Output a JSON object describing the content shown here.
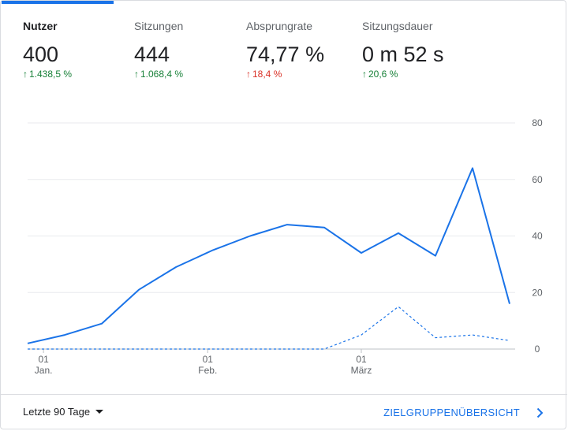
{
  "metrics": [
    {
      "label": "Nutzer",
      "value": "400",
      "delta": "1.438,5 %",
      "trend": "up"
    },
    {
      "label": "Sitzungen",
      "value": "444",
      "delta": "1.068,4 %",
      "trend": "up"
    },
    {
      "label": "Absprungrate",
      "value": "74,77 %",
      "delta": "18,4 %",
      "trend": "up"
    },
    {
      "label": "Sitzungsdauer",
      "value": "0 m 52 s",
      "delta": "20,6 %",
      "trend": "up"
    }
  ],
  "colors": {
    "accent": "#1a73e8",
    "positive": "#188038",
    "negative": "#d93025"
  },
  "chart_data": {
    "type": "line",
    "x": [
      "2019-12-29",
      "2020-01-05",
      "2020-01-12",
      "2020-01-19",
      "2020-01-26",
      "2020-02-02",
      "2020-02-09",
      "2020-02-16",
      "2020-02-23",
      "2020-03-01",
      "2020-03-08",
      "2020-03-15",
      "2020-03-22",
      "2020-03-29"
    ],
    "x_ticks": [
      {
        "date": "2020-01-01",
        "day": "01",
        "month": "Jan."
      },
      {
        "date": "2020-02-01",
        "day": "01",
        "month": "Feb."
      },
      {
        "date": "2020-03-01",
        "day": "01",
        "month": "März"
      }
    ],
    "series": [
      {
        "style": "solid",
        "values": [
          2,
          5,
          9,
          21,
          29,
          35,
          40,
          44,
          43,
          34,
          41,
          33,
          64,
          16
        ]
      },
      {
        "style": "dashed",
        "values": [
          0,
          0,
          0,
          0,
          0,
          0,
          0,
          0,
          0,
          5,
          15,
          4,
          5,
          3
        ]
      }
    ],
    "ylim": [
      0,
      80
    ],
    "y_ticks": [
      0,
      20,
      40,
      60,
      80
    ],
    "y_axis_side": "right",
    "grid": true
  },
  "footer": {
    "range_label": "Letzte 90 Tage",
    "link_label": "ZIELGRUPPENÜBERSICHT"
  }
}
